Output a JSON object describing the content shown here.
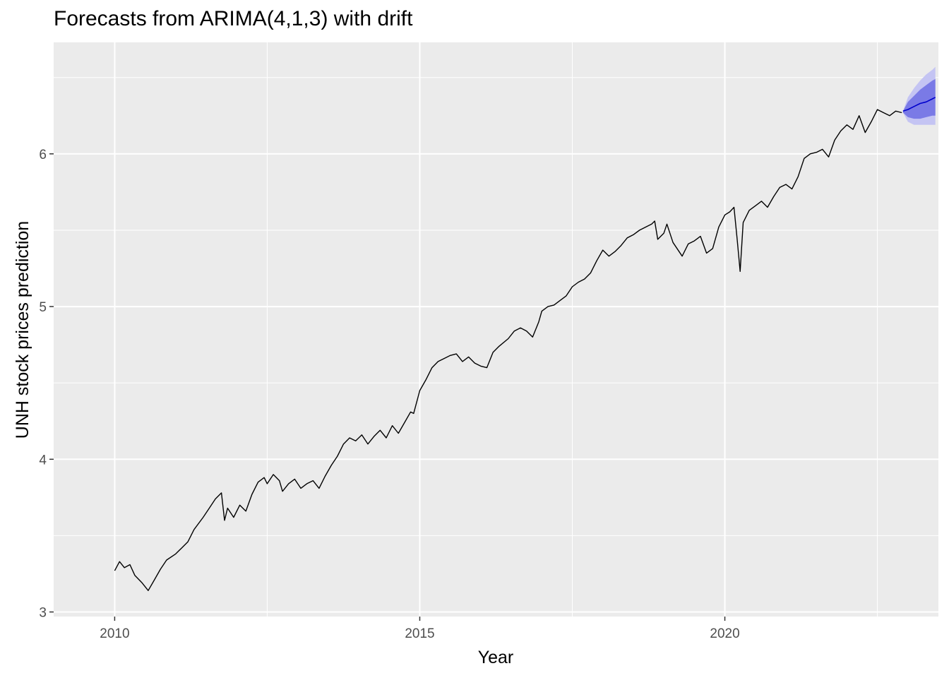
{
  "chart_data": {
    "type": "line",
    "title": "Forecasts from ARIMA(4,1,3) with drift",
    "xlabel": "Year",
    "ylabel": "UNH stock prices prediction",
    "xlim": [
      2009.0,
      2023.5
    ],
    "ylim": [
      2.97,
      6.73
    ],
    "x_ticks": [
      2010,
      2015,
      2020
    ],
    "y_ticks": [
      3,
      4,
      5,
      6
    ],
    "grid": true,
    "legend": "none",
    "series": [
      {
        "color": "#000000",
        "points": [
          [
            2010.0,
            3.27
          ],
          [
            2010.08,
            3.33
          ],
          [
            2010.16,
            3.29
          ],
          [
            2010.25,
            3.31
          ],
          [
            2010.33,
            3.24
          ],
          [
            2010.45,
            3.19
          ],
          [
            2010.55,
            3.14
          ],
          [
            2010.65,
            3.21
          ],
          [
            2010.75,
            3.28
          ],
          [
            2010.85,
            3.34
          ],
          [
            2011.0,
            3.38
          ],
          [
            2011.1,
            3.42
          ],
          [
            2011.2,
            3.46
          ],
          [
            2011.3,
            3.54
          ],
          [
            2011.45,
            3.62
          ],
          [
            2011.55,
            3.68
          ],
          [
            2011.65,
            3.74
          ],
          [
            2011.75,
            3.78
          ],
          [
            2011.8,
            3.6
          ],
          [
            2011.85,
            3.68
          ],
          [
            2011.95,
            3.62
          ],
          [
            2012.05,
            3.7
          ],
          [
            2012.15,
            3.66
          ],
          [
            2012.25,
            3.77
          ],
          [
            2012.35,
            3.85
          ],
          [
            2012.45,
            3.88
          ],
          [
            2012.5,
            3.84
          ],
          [
            2012.6,
            3.9
          ],
          [
            2012.7,
            3.86
          ],
          [
            2012.75,
            3.79
          ],
          [
            2012.85,
            3.84
          ],
          [
            2012.95,
            3.87
          ],
          [
            2013.05,
            3.81
          ],
          [
            2013.15,
            3.84
          ],
          [
            2013.25,
            3.86
          ],
          [
            2013.35,
            3.81
          ],
          [
            2013.45,
            3.89
          ],
          [
            2013.55,
            3.96
          ],
          [
            2013.65,
            4.02
          ],
          [
            2013.75,
            4.1
          ],
          [
            2013.85,
            4.14
          ],
          [
            2013.95,
            4.12
          ],
          [
            2014.05,
            4.16
          ],
          [
            2014.15,
            4.1
          ],
          [
            2014.25,
            4.15
          ],
          [
            2014.35,
            4.19
          ],
          [
            2014.45,
            4.14
          ],
          [
            2014.55,
            4.22
          ],
          [
            2014.65,
            4.17
          ],
          [
            2014.75,
            4.24
          ],
          [
            2014.85,
            4.31
          ],
          [
            2014.9,
            4.3
          ],
          [
            2015.0,
            4.45
          ],
          [
            2015.1,
            4.52
          ],
          [
            2015.2,
            4.6
          ],
          [
            2015.3,
            4.64
          ],
          [
            2015.4,
            4.66
          ],
          [
            2015.5,
            4.68
          ],
          [
            2015.6,
            4.69
          ],
          [
            2015.7,
            4.64
          ],
          [
            2015.8,
            4.67
          ],
          [
            2015.9,
            4.63
          ],
          [
            2016.0,
            4.61
          ],
          [
            2016.1,
            4.6
          ],
          [
            2016.2,
            4.7
          ],
          [
            2016.3,
            4.74
          ],
          [
            2016.45,
            4.79
          ],
          [
            2016.55,
            4.84
          ],
          [
            2016.65,
            4.86
          ],
          [
            2016.75,
            4.84
          ],
          [
            2016.85,
            4.8
          ],
          [
            2016.95,
            4.9
          ],
          [
            2017.0,
            4.97
          ],
          [
            2017.1,
            5.0
          ],
          [
            2017.2,
            5.01
          ],
          [
            2017.3,
            5.04
          ],
          [
            2017.4,
            5.07
          ],
          [
            2017.5,
            5.13
          ],
          [
            2017.6,
            5.16
          ],
          [
            2017.7,
            5.18
          ],
          [
            2017.8,
            5.22
          ],
          [
            2017.9,
            5.3
          ],
          [
            2018.0,
            5.37
          ],
          [
            2018.1,
            5.33
          ],
          [
            2018.2,
            5.36
          ],
          [
            2018.3,
            5.4
          ],
          [
            2018.4,
            5.45
          ],
          [
            2018.5,
            5.47
          ],
          [
            2018.6,
            5.5
          ],
          [
            2018.7,
            5.52
          ],
          [
            2018.8,
            5.54
          ],
          [
            2018.85,
            5.56
          ],
          [
            2018.9,
            5.44
          ],
          [
            2019.0,
            5.48
          ],
          [
            2019.05,
            5.54
          ],
          [
            2019.15,
            5.42
          ],
          [
            2019.3,
            5.33
          ],
          [
            2019.4,
            5.41
          ],
          [
            2019.5,
            5.43
          ],
          [
            2019.6,
            5.46
          ],
          [
            2019.7,
            5.35
          ],
          [
            2019.8,
            5.38
          ],
          [
            2019.9,
            5.52
          ],
          [
            2020.0,
            5.6
          ],
          [
            2020.08,
            5.62
          ],
          [
            2020.15,
            5.65
          ],
          [
            2020.2,
            5.45
          ],
          [
            2020.25,
            5.23
          ],
          [
            2020.3,
            5.55
          ],
          [
            2020.4,
            5.63
          ],
          [
            2020.5,
            5.66
          ],
          [
            2020.6,
            5.69
          ],
          [
            2020.7,
            5.65
          ],
          [
            2020.8,
            5.72
          ],
          [
            2020.9,
            5.78
          ],
          [
            2021.0,
            5.8
          ],
          [
            2021.1,
            5.77
          ],
          [
            2021.2,
            5.85
          ],
          [
            2021.3,
            5.97
          ],
          [
            2021.4,
            6.0
          ],
          [
            2021.5,
            6.01
          ],
          [
            2021.6,
            6.03
          ],
          [
            2021.7,
            5.98
          ],
          [
            2021.8,
            6.09
          ],
          [
            2021.9,
            6.15
          ],
          [
            2022.0,
            6.19
          ],
          [
            2022.1,
            6.16
          ],
          [
            2022.2,
            6.25
          ],
          [
            2022.3,
            6.14
          ],
          [
            2022.4,
            6.21
          ],
          [
            2022.5,
            6.29
          ],
          [
            2022.6,
            6.27
          ],
          [
            2022.7,
            6.25
          ],
          [
            2022.8,
            6.28
          ],
          [
            2022.9,
            6.27
          ]
        ]
      },
      {
        "color": "#0000cc",
        "points": [
          [
            2022.92,
            6.28
          ],
          [
            2023.0,
            6.29
          ],
          [
            2023.1,
            6.31
          ],
          [
            2023.2,
            6.33
          ],
          [
            2023.3,
            6.34
          ],
          [
            2023.4,
            6.36
          ],
          [
            2023.45,
            6.37
          ]
        ]
      }
    ],
    "forecast_bands": [
      {
        "level": "95%",
        "color": "#c4c4f3",
        "points": [
          [
            2022.92,
            6.27,
            6.28
          ],
          [
            2023.0,
            6.21,
            6.37
          ],
          [
            2023.1,
            6.19,
            6.43
          ],
          [
            2023.2,
            6.19,
            6.48
          ],
          [
            2023.3,
            6.19,
            6.52
          ],
          [
            2023.4,
            6.19,
            6.55
          ],
          [
            2023.45,
            6.19,
            6.57
          ]
        ]
      },
      {
        "level": "80%",
        "color": "#7a7ae6",
        "points": [
          [
            2022.92,
            6.27,
            6.28
          ],
          [
            2023.0,
            6.24,
            6.34
          ],
          [
            2023.1,
            6.23,
            6.38
          ],
          [
            2023.2,
            6.23,
            6.42
          ],
          [
            2023.3,
            6.24,
            6.45
          ],
          [
            2023.4,
            6.25,
            6.48
          ],
          [
            2023.45,
            6.25,
            6.49
          ]
        ]
      }
    ]
  }
}
